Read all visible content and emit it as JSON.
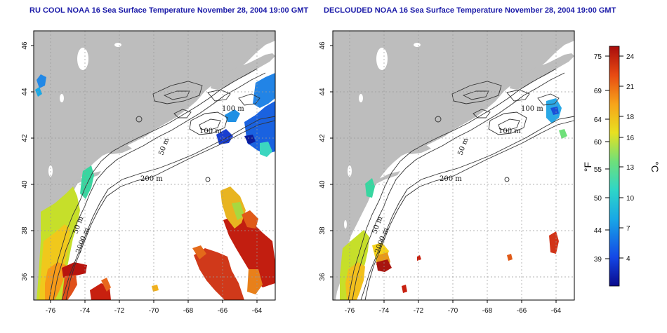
{
  "panels": [
    {
      "title": "RU COOL NOAA 16 Sea Surface Temperature November 28, 2004 19:00 GMT",
      "contour_labels": [
        "100 m",
        "100 m",
        "50 m",
        "200 m",
        "50 m",
        "2000 m"
      ]
    },
    {
      "title": "DECLOUDED NOAA 16 Sea Surface Temperature November 28, 2004 19:00 GMT",
      "contour_labels": [
        "100 m",
        "100 m",
        "50 m",
        "200 m",
        "50 m",
        "2000 m"
      ]
    }
  ],
  "axes": {
    "lon_ticks": [
      "-76",
      "-74",
      "-72",
      "-70",
      "-68",
      "-66",
      "-64"
    ],
    "lat_ticks": [
      "36",
      "38",
      "40",
      "42",
      "44",
      "46"
    ]
  },
  "colorbar": {
    "fahrenheit_ticks": [
      "75",
      "69",
      "64",
      "60",
      "55",
      "50",
      "44",
      "39"
    ],
    "celsius_ticks": [
      "24",
      "21",
      "18",
      "16",
      "13",
      "10",
      "7",
      "4"
    ],
    "fahrenheit_unit": "°F",
    "celsius_unit": "°C"
  },
  "colors": {
    "land": "#bdbdbd",
    "ocean": "#ffffff",
    "title": "#1a1aa8",
    "grid": "#9a9a9a",
    "contour": "#333333",
    "colormap": [
      "#0a0a8c",
      "#1447e6",
      "#18a8e6",
      "#2ed6c8",
      "#6fe07a",
      "#e8e020",
      "#f7a31a",
      "#e84a12",
      "#a80c0c"
    ]
  }
}
